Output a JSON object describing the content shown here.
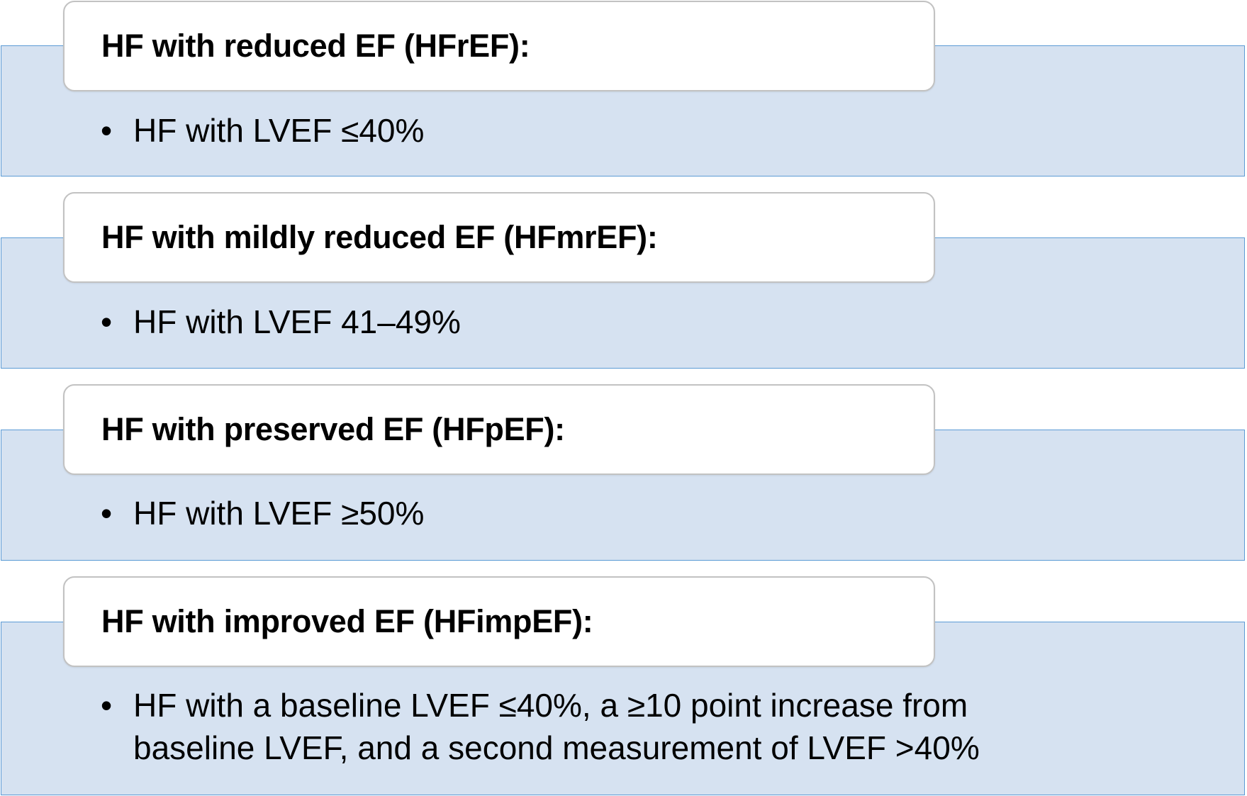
{
  "categories": [
    {
      "heading": "HF with reduced EF (HFrEF):",
      "bullet": "HF with LVEF ≤40%"
    },
    {
      "heading": "HF with mildly reduced EF (HFmrEF):",
      "bullet": "HF with LVEF 41–49%"
    },
    {
      "heading": "HF with preserved EF (HFpEF):",
      "bullet": "HF with LVEF ≥50%"
    },
    {
      "heading": "HF with improved EF (HFimpEF):",
      "bullet": "HF with a baseline LVEF ≤40%, a ≥10 point increase from baseline LVEF, and a second measurement of LVEF >40%"
    }
  ],
  "bullet_symbol": "•",
  "colors": {
    "band_fill": "#d6e2f1",
    "band_border": "#5b9bd5",
    "card_fill": "#ffffff",
    "card_border": "#c2c2c2"
  }
}
